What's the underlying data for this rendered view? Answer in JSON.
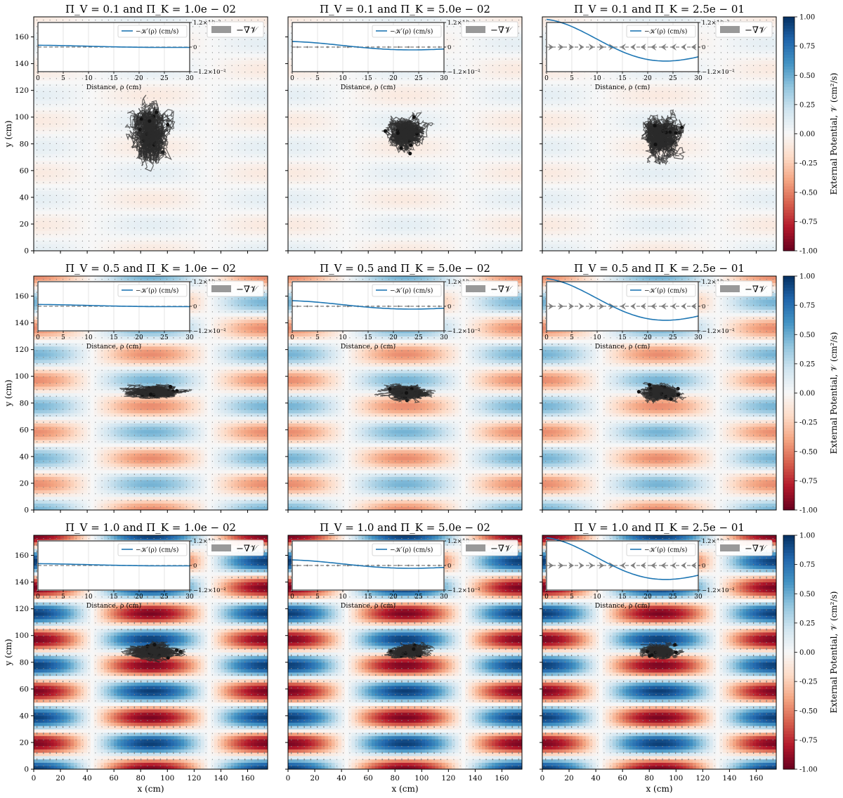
{
  "figure": {
    "colorbar_label": "External Potential, 𝒱 (cm²/s)",
    "colorbar_ticks": [
      1.0,
      0.75,
      0.5,
      0.25,
      0.0,
      -0.25,
      -0.5,
      -0.75,
      -1.0
    ],
    "colormap": [
      "#67001f",
      "#b2182b",
      "#d6604d",
      "#f4a582",
      "#fddbc7",
      "#f7f7f7",
      "#d1e5f0",
      "#92c5de",
      "#4393c3",
      "#2166ac",
      "#053061"
    ]
  },
  "chart_data": [
    {
      "type": "heatmap",
      "title": "Π_V = 0.1 and Π_K = 1.0e − 02",
      "Pi_V": 0.1,
      "Pi_K": 0.01,
      "xlabel": "",
      "ylabel": "y (cm)",
      "xlim": [
        0,
        175
      ],
      "ylim": [
        0,
        175
      ],
      "xticks": [
        0,
        20,
        40,
        60,
        80,
        100,
        120,
        140,
        160
      ],
      "yticks": [
        0,
        20,
        40,
        60,
        80,
        100,
        120,
        140,
        160
      ],
      "cluster": {
        "cx": 88,
        "cy": 88,
        "sx": 15,
        "sy": 20
      },
      "inset": {
        "type": "line",
        "xlabel": "Distance, ρ (cm)",
        "xlim": [
          0,
          30
        ],
        "ylim": [
          -0.012,
          0.012
        ],
        "yticks_text": [
          "1.2×10⁻²",
          "0",
          "−1.2×10⁻²"
        ],
        "xticks": [
          0,
          5,
          10,
          15,
          20,
          25,
          30
        ],
        "legend_curve": "−𝒦′(ρ) (cm/s)",
        "legend_arrow": "−∇𝒱",
        "amplitude": 0.0005
      }
    },
    {
      "type": "heatmap",
      "title": "Π_V = 0.1 and Π_K = 5.0e − 02",
      "Pi_V": 0.1,
      "Pi_K": 0.05,
      "xlabel": "",
      "ylabel": "",
      "xlim": [
        0,
        175
      ],
      "ylim": [
        0,
        175
      ],
      "xticks": [
        0,
        20,
        40,
        60,
        80,
        100,
        120,
        140,
        160
      ],
      "yticks": [
        0,
        20,
        40,
        60,
        80,
        100,
        120,
        140,
        160
      ],
      "cluster": {
        "cx": 88,
        "cy": 88,
        "sx": 14,
        "sy": 12
      },
      "inset": {
        "type": "line",
        "xlabel": "Distance, ρ (cm)",
        "xlim": [
          0,
          30
        ],
        "ylim": [
          -0.012,
          0.012
        ],
        "yticks_text": [
          "1.2×10⁻²",
          "0",
          "−1.2×10⁻²"
        ],
        "xticks": [
          0,
          5,
          10,
          15,
          20,
          25,
          30
        ],
        "legend_curve": "−𝒦′(ρ) (cm/s)",
        "legend_arrow": "−∇𝒱",
        "amplitude": 0.0027
      }
    },
    {
      "type": "heatmap",
      "title": "Π_V = 0.1 and Π_K = 2.5e − 01",
      "Pi_V": 0.1,
      "Pi_K": 0.25,
      "xlabel": "",
      "ylabel": "",
      "xlim": [
        0,
        175
      ],
      "ylim": [
        0,
        175
      ],
      "xticks": [
        0,
        20,
        40,
        60,
        80,
        100,
        120,
        140,
        160
      ],
      "yticks": [
        0,
        20,
        40,
        60,
        80,
        100,
        120,
        140,
        160
      ],
      "cluster": {
        "cx": 88,
        "cy": 86,
        "sx": 15,
        "sy": 16
      },
      "inset": {
        "type": "line",
        "xlabel": "Distance, ρ (cm)",
        "xlim": [
          0,
          30
        ],
        "ylim": [
          -0.012,
          0.012
        ],
        "yticks_text": [
          "1.2×10⁻²",
          "0",
          "−1.2×10⁻²"
        ],
        "xticks": [
          0,
          5,
          10,
          15,
          20,
          25,
          30
        ],
        "legend_curve": "−𝒦′(ρ) (cm/s)",
        "legend_arrow": "−∇𝒱",
        "amplitude": 0.0135
      }
    },
    {
      "type": "heatmap",
      "title": "Π_V = 0.5 and Π_K = 1.0e − 02",
      "Pi_V": 0.5,
      "Pi_K": 0.01,
      "xlabel": "",
      "ylabel": "y (cm)",
      "xlim": [
        0,
        175
      ],
      "ylim": [
        0,
        175
      ],
      "xticks": [
        0,
        20,
        40,
        60,
        80,
        100,
        120,
        140,
        160
      ],
      "yticks": [
        0,
        20,
        40,
        60,
        80,
        100,
        120,
        140,
        160
      ],
      "cluster": {
        "cx": 90,
        "cy": 88,
        "sx": 20,
        "sy": 5
      },
      "inset": {
        "type": "line",
        "xlabel": "Distance, ρ (cm)",
        "xlim": [
          0,
          30
        ],
        "ylim": [
          -0.012,
          0.012
        ],
        "yticks_text": [
          "1.2×10⁻²",
          "0",
          "−1.2×10⁻²"
        ],
        "xticks": [
          0,
          5,
          10,
          15,
          20,
          25,
          30
        ],
        "legend_curve": "−𝒦′(ρ) (cm/s)",
        "legend_arrow": "−∇𝒱",
        "amplitude": 0.0005
      }
    },
    {
      "type": "heatmap",
      "title": "Π_V = 0.5 and Π_K = 5.0e − 02",
      "Pi_V": 0.5,
      "Pi_K": 0.05,
      "xlabel": "",
      "ylabel": "",
      "xlim": [
        0,
        175
      ],
      "ylim": [
        0,
        175
      ],
      "xticks": [
        0,
        20,
        40,
        60,
        80,
        100,
        120,
        140,
        160
      ],
      "yticks": [
        0,
        20,
        40,
        60,
        80,
        100,
        120,
        140,
        160
      ],
      "cluster": {
        "cx": 88,
        "cy": 88,
        "sx": 16,
        "sy": 5
      },
      "inset": {
        "type": "line",
        "xlabel": "Distance, ρ (cm)",
        "xlim": [
          0,
          30
        ],
        "ylim": [
          -0.012,
          0.012
        ],
        "yticks_text": [
          "1.2×10⁻²",
          "0",
          "−1.2×10⁻²"
        ],
        "xticks": [
          0,
          5,
          10,
          15,
          20,
          25,
          30
        ],
        "legend_curve": "−𝒦′(ρ) (cm/s)",
        "legend_arrow": "−∇𝒱",
        "amplitude": 0.0027
      }
    },
    {
      "type": "heatmap",
      "title": "Π_V = 0.5 and Π_K = 2.5e − 01",
      "Pi_V": 0.5,
      "Pi_K": 0.25,
      "xlabel": "",
      "ylabel": "",
      "xlim": [
        0,
        175
      ],
      "ylim": [
        0,
        175
      ],
      "xticks": [
        0,
        20,
        40,
        60,
        80,
        100,
        120,
        140,
        160
      ],
      "yticks": [
        0,
        20,
        40,
        60,
        80,
        100,
        120,
        140,
        160
      ],
      "cluster": {
        "cx": 88,
        "cy": 88,
        "sx": 14,
        "sy": 6
      },
      "inset": {
        "type": "line",
        "xlabel": "Distance, ρ (cm)",
        "xlim": [
          0,
          30
        ],
        "ylim": [
          -0.012,
          0.012
        ],
        "yticks_text": [
          "1.2×10⁻²",
          "0",
          "−1.2×10⁻²"
        ],
        "xticks": [
          0,
          5,
          10,
          15,
          20,
          25,
          30
        ],
        "legend_curve": "−𝒦′(ρ) (cm/s)",
        "legend_arrow": "−∇𝒱",
        "amplitude": 0.0135
      }
    },
    {
      "type": "heatmap",
      "title": "Π_V = 1.0 and Π_K = 1.0e − 02",
      "Pi_V": 1.0,
      "Pi_K": 0.01,
      "xlabel": "x (cm)",
      "ylabel": "y (cm)",
      "xlim": [
        0,
        175
      ],
      "ylim": [
        0,
        175
      ],
      "xticks": [
        0,
        20,
        40,
        60,
        80,
        100,
        120,
        140,
        160
      ],
      "yticks": [
        0,
        20,
        40,
        60,
        80,
        100,
        120,
        140,
        160
      ],
      "cluster": {
        "cx": 90,
        "cy": 88,
        "sx": 18,
        "sy": 5
      },
      "inset": {
        "type": "line",
        "xlabel": "Distance, ρ (cm)",
        "xlim": [
          0,
          30
        ],
        "ylim": [
          -0.012,
          0.012
        ],
        "yticks_text": [
          "1.2×10⁻²",
          "0",
          "−1.2×10⁻²"
        ],
        "xticks": [
          0,
          5,
          10,
          15,
          20,
          25,
          30
        ],
        "legend_curve": "−𝒦′(ρ) (cm/s)",
        "legend_arrow": "−∇𝒱",
        "amplitude": 0.0005
      }
    },
    {
      "type": "heatmap",
      "title": "Π_V = 1.0 and Π_K = 5.0e − 02",
      "Pi_V": 1.0,
      "Pi_K": 0.05,
      "xlabel": "x (cm)",
      "ylabel": "",
      "xlim": [
        0,
        175
      ],
      "ylim": [
        0,
        175
      ],
      "xticks": [
        0,
        20,
        40,
        60,
        80,
        100,
        120,
        140,
        160
      ],
      "yticks": [
        0,
        20,
        40,
        60,
        80,
        100,
        120,
        140,
        160
      ],
      "cluster": {
        "cx": 90,
        "cy": 88,
        "sx": 14,
        "sy": 5
      },
      "inset": {
        "type": "line",
        "xlabel": "Distance, ρ (cm)",
        "xlim": [
          0,
          30
        ],
        "ylim": [
          -0.012,
          0.012
        ],
        "yticks_text": [
          "1.2×10⁻²",
          "0",
          "−1.2×10⁻²"
        ],
        "xticks": [
          0,
          5,
          10,
          15,
          20,
          25,
          30
        ],
        "legend_curve": "−𝒦′(ρ) (cm/s)",
        "legend_arrow": "−∇𝒱",
        "amplitude": 0.0027
      }
    },
    {
      "type": "heatmap",
      "title": "Π_V = 1.0 and Π_K = 2.5e − 01",
      "Pi_V": 1.0,
      "Pi_K": 0.25,
      "xlabel": "x (cm)",
      "ylabel": "",
      "xlim": [
        0,
        175
      ],
      "ylim": [
        0,
        175
      ],
      "xticks": [
        0,
        20,
        40,
        60,
        80,
        100,
        120,
        140,
        160
      ],
      "yticks": [
        0,
        20,
        40,
        60,
        80,
        100,
        120,
        140,
        160
      ],
      "cluster": {
        "cx": 88,
        "cy": 88,
        "sx": 12,
        "sy": 5
      },
      "inset": {
        "type": "line",
        "xlabel": "Distance, ρ (cm)",
        "xlim": [
          0,
          30
        ],
        "ylim": [
          -0.012,
          0.012
        ],
        "yticks_text": [
          "1.2×10⁻²",
          "0",
          "−1.2×10⁻²"
        ],
        "xticks": [
          0,
          5,
          10,
          15,
          20,
          25,
          30
        ],
        "legend_curve": "−𝒦′(ρ) (cm/s)",
        "legend_arrow": "−∇𝒱",
        "amplitude": 0.0135
      }
    }
  ]
}
